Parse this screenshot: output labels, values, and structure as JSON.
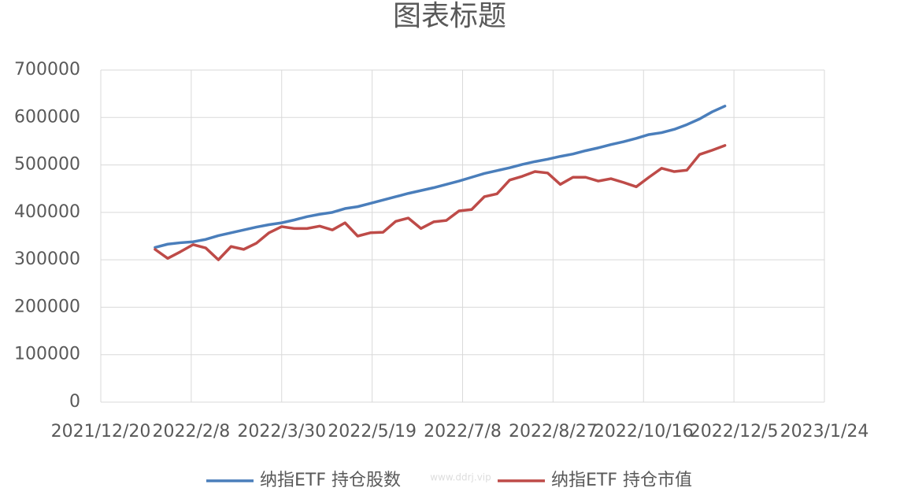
{
  "chart_data": {
    "type": "line",
    "title": "图表标题",
    "watermark": "www.ddrj.vip",
    "x": [
      "2022/1/19",
      "2022/1/26",
      "2022/2/2",
      "2022/2/9",
      "2022/2/16",
      "2022/2/23",
      "2022/3/2",
      "2022/3/9",
      "2022/3/16",
      "2022/3/23",
      "2022/3/30",
      "2022/4/6",
      "2022/4/13",
      "2022/4/20",
      "2022/4/27",
      "2022/5/4",
      "2022/5/11",
      "2022/5/18",
      "2022/5/25",
      "2022/6/1",
      "2022/6/8",
      "2022/6/15",
      "2022/6/22",
      "2022/6/29",
      "2022/7/6",
      "2022/7/13",
      "2022/7/20",
      "2022/7/27",
      "2022/8/3",
      "2022/8/10",
      "2022/8/17",
      "2022/8/24",
      "2022/8/31",
      "2022/9/7",
      "2022/9/14",
      "2022/9/21",
      "2022/9/28",
      "2022/10/5",
      "2022/10/12",
      "2022/10/19",
      "2022/10/26",
      "2022/11/2",
      "2022/11/9",
      "2022/11/16",
      "2022/11/23",
      "2022/11/30"
    ],
    "series": [
      {
        "name": "纳指ETF 持仓股数",
        "color": "#4a7ebb",
        "values": [
          326000,
          333000,
          336000,
          338000,
          343000,
          351000,
          357000,
          363000,
          369000,
          374000,
          378000,
          384000,
          391000,
          396000,
          400000,
          408000,
          412000,
          419000,
          426000,
          433000,
          440000,
          446000,
          452000,
          459000,
          466000,
          474000,
          482000,
          488000,
          494000,
          501000,
          507000,
          512000,
          518000,
          523000,
          530000,
          536000,
          543000,
          549000,
          556000,
          564000,
          568000,
          575000,
          585000,
          597000,
          612000,
          624000
        ]
      },
      {
        "name": "纳指ETF 持仓市值",
        "color": "#be4b48",
        "values": [
          322000,
          303000,
          317000,
          332000,
          325000,
          300000,
          328000,
          322000,
          335000,
          357000,
          370000,
          366000,
          366000,
          371000,
          363000,
          378000,
          350000,
          357000,
          358000,
          381000,
          388000,
          366000,
          380000,
          383000,
          403000,
          406000,
          433000,
          439000,
          468000,
          476000,
          486000,
          483000,
          459000,
          474000,
          474000,
          466000,
          471000,
          463000,
          454000,
          474000,
          493000,
          486000,
          489000,
          522000,
          531000,
          541000
        ]
      }
    ],
    "xlim": [
      "2021/12/20",
      "2023/1/24"
    ],
    "xticks": [
      "2021/12/20",
      "2022/2/8",
      "2022/3/30",
      "2022/5/19",
      "2022/7/8",
      "2022/8/27",
      "2022/10/16",
      "2022/12/5",
      "2023/1/24"
    ],
    "ylim": [
      0,
      700000
    ],
    "yticks": [
      0,
      100000,
      200000,
      300000,
      400000,
      500000,
      600000,
      700000
    ],
    "grid": true,
    "legend": "bottom"
  }
}
